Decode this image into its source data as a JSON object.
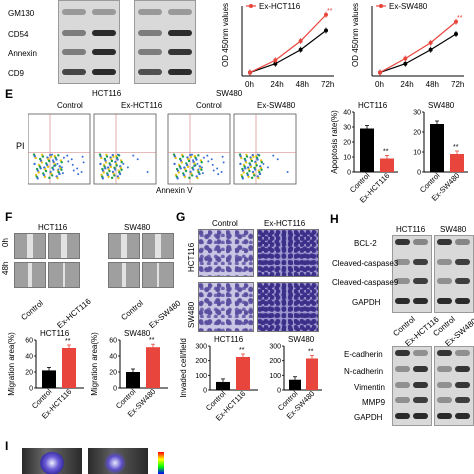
{
  "panel_letters": {
    "E": "E",
    "F": "F",
    "G": "G",
    "H": "H",
    "I": "I"
  },
  "western_top": {
    "markers": [
      "GM130",
      "CD54",
      "Annexin",
      "CD9"
    ]
  },
  "cck8": [
    {
      "ylabel": "OD 450nm values",
      "legend": "Ex-HCT116",
      "sig": "**"
    },
    {
      "ylabel": "OD 450nm values",
      "legend": "Ex-SW480",
      "sig": "**"
    }
  ],
  "chart_data": [
    {
      "type": "line",
      "title": "",
      "xlabel": "",
      "ylabel": "OD 450nm values",
      "categories": [
        "0h",
        "24h",
        "48h",
        "72h"
      ],
      "series": [
        {
          "name": "",
          "values": [
            0.1,
            0.35,
            0.75,
            1.3
          ]
        },
        {
          "name": "Ex-HCT116",
          "values": [
            0.1,
            0.45,
            1.0,
            1.75
          ]
        }
      ],
      "ylim": [
        0,
        2
      ]
    },
    {
      "type": "line",
      "title": "",
      "xlabel": "",
      "ylabel": "OD 450nm values",
      "categories": [
        "0h",
        "24h",
        "48h",
        "72h"
      ],
      "series": [
        {
          "name": "",
          "values": [
            0.1,
            0.35,
            0.75,
            1.2
          ]
        },
        {
          "name": "Ex-SW480",
          "values": [
            0.1,
            0.5,
            0.95,
            1.55
          ]
        }
      ],
      "ylim": [
        0,
        2
      ]
    },
    {
      "type": "bar",
      "title": "HCT116",
      "ylabel": "Apoptosis rate(%)",
      "categories": [
        "Control",
        "Ex-HCT116"
      ],
      "values": [
        29,
        9
      ],
      "ylim": [
        0,
        40
      ],
      "yticks": [
        0,
        10,
        20,
        30,
        40
      ],
      "sig": "**"
    },
    {
      "type": "bar",
      "title": "SW480",
      "ylabel": "",
      "categories": [
        "Control",
        "Ex-SW480"
      ],
      "values": [
        24,
        9
      ],
      "ylim": [
        0,
        30
      ],
      "yticks": [
        0,
        10,
        20,
        30
      ],
      "sig": "**"
    },
    {
      "type": "bar",
      "title": "HCT116",
      "ylabel": "Migration area(%)",
      "categories": [
        "Control",
        "Ex-HCT116"
      ],
      "values": [
        22,
        50
      ],
      "ylim": [
        0,
        60
      ],
      "yticks": [
        0,
        20,
        40,
        60
      ],
      "sig": "**"
    },
    {
      "type": "bar",
      "title": "SW480",
      "ylabel": "Migration area(%)",
      "categories": [
        "Control",
        "Ex-SW480"
      ],
      "values": [
        20,
        51
      ],
      "ylim": [
        0,
        60
      ],
      "yticks": [
        0,
        20,
        40,
        60
      ],
      "sig": "**"
    },
    {
      "type": "bar",
      "title": "HCT116",
      "ylabel": "Invaded cell/field",
      "categories": [
        "Control",
        "Ex-HCT116"
      ],
      "values": [
        55,
        225
      ],
      "ylim": [
        0,
        300
      ],
      "yticks": [
        0,
        100,
        200,
        300
      ],
      "sig": "**"
    },
    {
      "type": "bar",
      "title": "SW480",
      "ylabel": "",
      "categories": [
        "Control",
        "Ex-SW480"
      ],
      "values": [
        70,
        215
      ],
      "ylim": [
        0,
        300
      ],
      "yticks": [
        0,
        100,
        200,
        300
      ],
      "sig": "**"
    }
  ],
  "flow": {
    "groups": [
      "HCT116",
      "SW480"
    ],
    "labels": [
      "Control",
      "Ex-HCT116",
      "Control",
      "Ex-SW480"
    ],
    "ylabel": "PI",
    "xlabel": "Annexin V"
  },
  "wound": {
    "groups": [
      "HCT116",
      "SW480"
    ],
    "rows": [
      "0h",
      "48h"
    ],
    "labels": [
      "Control",
      "Ex-HCT116",
      "Control",
      "Ex-SW480"
    ]
  },
  "invasion": {
    "cols": [
      "Control",
      "Ex-HCT116"
    ],
    "rows": [
      "HCT116",
      "SW480"
    ]
  },
  "western_h": {
    "groups": [
      "HCT116",
      "SW480"
    ],
    "markers_top": [
      "BCL-2",
      "Cleaved-caspase3",
      "Cleaved-caspase9",
      "GAPDH"
    ],
    "labels_top": [
      "Control",
      "Ex-HCT116",
      "Control",
      "Ex-SW480"
    ],
    "markers_bottom": [
      "E-cadherin",
      "N-cadherin",
      "Vimentin",
      "MMP9",
      "GAPDH"
    ]
  }
}
